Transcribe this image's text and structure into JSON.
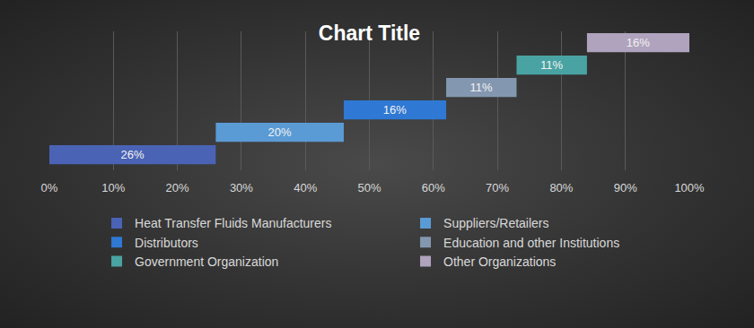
{
  "chart_data": {
    "type": "bar",
    "title": "Chart Title",
    "orientation": "horizontal",
    "stacked": true,
    "categories": [
      "Heat Transfer Fluids Manufacturers",
      "Suppliers/Retailers",
      "Distributors",
      "Education and other Institutions",
      "Government Organization",
      "Other Organizations"
    ],
    "values": [
      26,
      20,
      16,
      11,
      11,
      16
    ],
    "value_labels": [
      "26%",
      "20%",
      "16%",
      "11%",
      "11%",
      "16%"
    ],
    "colors": [
      "#4a63b5",
      "#5b9bd5",
      "#2f78d4",
      "#8497b0",
      "#4aa3a3",
      "#b0a3bd"
    ],
    "data_labels": true,
    "xlim": [
      0,
      100
    ],
    "xticks": [
      {
        "value": 0,
        "label": "0%"
      },
      {
        "value": 10,
        "label": "10%"
      },
      {
        "value": 20,
        "label": "20%"
      },
      {
        "value": 30,
        "label": "30%"
      },
      {
        "value": 40,
        "label": "40%"
      },
      {
        "value": 50,
        "label": "50%"
      },
      {
        "value": 60,
        "label": "60%"
      },
      {
        "value": 70,
        "label": "70%"
      },
      {
        "value": 80,
        "label": "80%"
      },
      {
        "value": 90,
        "label": "90%"
      },
      {
        "value": 100,
        "label": "100%"
      }
    ],
    "grid": true,
    "legend": "bottom",
    "tick_labels": "x"
  }
}
